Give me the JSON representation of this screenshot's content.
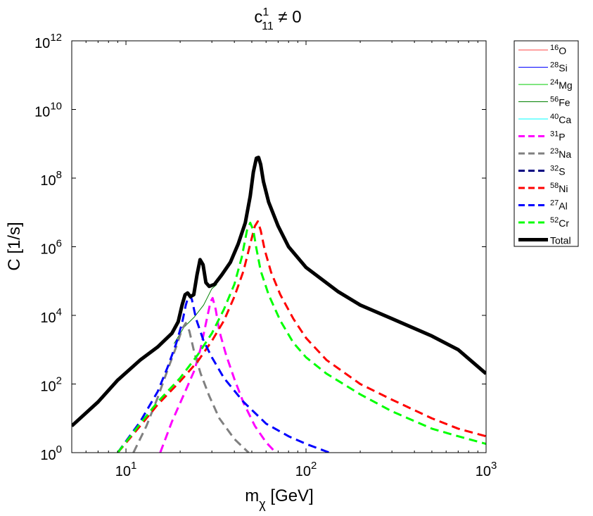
{
  "chart_data": {
    "type": "line",
    "title": {
      "base": "c",
      "sup": "1",
      "sub": "11",
      "rest": " ≠ 0"
    },
    "xlabel": {
      "base": "m",
      "sub": "χ",
      "rest": " [GeV]"
    },
    "ylabel": "C [1/s]",
    "xscale": "log",
    "yscale": "log",
    "xlim": [
      5,
      1000
    ],
    "ylim": [
      1,
      1000000000000
    ],
    "x_ticks": [
      {
        "value": 10,
        "base": "10",
        "exp": "1"
      },
      {
        "value": 100,
        "base": "10",
        "exp": "2"
      },
      {
        "value": 1000,
        "base": "10",
        "exp": "3"
      }
    ],
    "y_ticks": [
      {
        "value": 1,
        "base": "10",
        "exp": "0"
      },
      {
        "value": 100,
        "base": "10",
        "exp": "2"
      },
      {
        "value": 10000,
        "base": "10",
        "exp": "4"
      },
      {
        "value": 1000000,
        "base": "10",
        "exp": "6"
      },
      {
        "value": 100000000,
        "base": "10",
        "exp": "8"
      },
      {
        "value": 10000000000,
        "base": "10",
        "exp": "10"
      },
      {
        "value": 1000000000000,
        "base": "10",
        "exp": "12"
      }
    ],
    "legend_position": "outside-top-right",
    "series": [
      {
        "name": "16O",
        "label_sup": "16",
        "label_base": "O",
        "color": "#ff4444",
        "style": "solid",
        "width": 1,
        "points": []
      },
      {
        "name": "28Si",
        "label_sup": "28",
        "label_base": "Si",
        "color": "#0000ff",
        "style": "solid",
        "width": 1,
        "points": []
      },
      {
        "name": "24Mg",
        "label_sup": "24",
        "label_base": "Mg",
        "color": "#00cc00",
        "style": "solid",
        "width": 1,
        "points": []
      },
      {
        "name": "56Fe",
        "label_sup": "56",
        "label_base": "Fe",
        "color": "#008000",
        "style": "solid",
        "width": 1,
        "points": [
          [
            18.5,
            1500
          ],
          [
            21,
            4500
          ],
          [
            24,
            9000
          ],
          [
            27,
            20000
          ],
          [
            30,
            60000
          ],
          [
            32,
            80000
          ]
        ]
      },
      {
        "name": "40Ca",
        "label_sup": "40",
        "label_base": "Ca",
        "color": "#00ffff",
        "style": "solid",
        "width": 1,
        "points": []
      },
      {
        "name": "31P",
        "label_sup": "31",
        "label_base": "P",
        "color": "#ff00ff",
        "style": "dashed",
        "width": 3,
        "points": [
          [
            15.5,
            1
          ],
          [
            18,
            8
          ],
          [
            21,
            50
          ],
          [
            24,
            250
          ],
          [
            26,
            1100
          ],
          [
            28,
            7000
          ],
          [
            29.5,
            25000
          ],
          [
            30.3,
            32000
          ],
          [
            31.5,
            15000
          ],
          [
            33,
            3500
          ],
          [
            36,
            700
          ],
          [
            40,
            140
          ],
          [
            45,
            28
          ],
          [
            52,
            6
          ],
          [
            60,
            2
          ],
          [
            68,
            1
          ]
        ]
      },
      {
        "name": "23Na",
        "label_sup": "23",
        "label_base": "Na",
        "color": "#808080",
        "style": "dashed",
        "width": 3,
        "points": [
          [
            11,
            1
          ],
          [
            13,
            6
          ],
          [
            15,
            40
          ],
          [
            17,
            250
          ],
          [
            19,
            1200
          ],
          [
            20.5,
            4000
          ],
          [
            21.5,
            6000
          ],
          [
            22.5,
            3500
          ],
          [
            24,
            800
          ],
          [
            26,
            200
          ],
          [
            29,
            45
          ],
          [
            33,
            10
          ],
          [
            40,
            2.5
          ],
          [
            48,
            1
          ]
        ]
      },
      {
        "name": "32S",
        "label_sup": "32",
        "label_base": "S",
        "color": "#000080",
        "style": "dashed",
        "width": 3,
        "points": []
      },
      {
        "name": "58Ni",
        "label_sup": "58",
        "label_base": "Ni",
        "color": "#ff0000",
        "style": "dashed",
        "width": 3,
        "points": [
          [
            9,
            1
          ],
          [
            12,
            6
          ],
          [
            15,
            25
          ],
          [
            20,
            120
          ],
          [
            25,
            450
          ],
          [
            30,
            1800
          ],
          [
            35,
            7000
          ],
          [
            40,
            35000
          ],
          [
            45,
            200000
          ],
          [
            49,
            1200000
          ],
          [
            52,
            4000000
          ],
          [
            54,
            5500000
          ],
          [
            56,
            3000000
          ],
          [
            59,
            800000
          ],
          [
            64,
            180000
          ],
          [
            72,
            40000
          ],
          [
            85,
            8000
          ],
          [
            100,
            2200
          ],
          [
            130,
            500
          ],
          [
            200,
            100
          ],
          [
            300,
            35
          ],
          [
            500,
            10
          ],
          [
            700,
            5
          ],
          [
            1000,
            3
          ]
        ]
      },
      {
        "name": "27Al",
        "label_sup": "27",
        "label_base": "Al",
        "color": "#0000ff",
        "style": "dashed",
        "width": 3,
        "points": [
          [
            9,
            1
          ],
          [
            12,
            8
          ],
          [
            15,
            60
          ],
          [
            17,
            300
          ],
          [
            19,
            1500
          ],
          [
            20.5,
            6000
          ],
          [
            21.5,
            20000
          ],
          [
            22.3,
            38000
          ],
          [
            23.2,
            30000
          ],
          [
            24.5,
            8000
          ],
          [
            27,
            1800
          ],
          [
            30,
            600
          ],
          [
            35,
            150
          ],
          [
            45,
            30
          ],
          [
            60,
            7
          ],
          [
            80,
            3
          ],
          [
            100,
            1.8
          ],
          [
            135,
            1
          ]
        ]
      },
      {
        "name": "52Cr",
        "label_sup": "52",
        "label_base": "Cr",
        "color": "#00ff00",
        "style": "dashed",
        "width": 3,
        "points": [
          [
            9,
            1
          ],
          [
            12,
            7
          ],
          [
            15,
            30
          ],
          [
            20,
            150
          ],
          [
            25,
            700
          ],
          [
            30,
            3000
          ],
          [
            35,
            15000
          ],
          [
            40,
            80000
          ],
          [
            44,
            500000
          ],
          [
            47,
            3000000
          ],
          [
            49,
            5000000
          ],
          [
            51,
            3000000
          ],
          [
            53,
            900000
          ],
          [
            56,
            200000
          ],
          [
            62,
            40000
          ],
          [
            72,
            7000
          ],
          [
            85,
            1600
          ],
          [
            100,
            600
          ],
          [
            130,
            200
          ],
          [
            200,
            50
          ],
          [
            300,
            16
          ],
          [
            500,
            5
          ],
          [
            700,
            3
          ],
          [
            1000,
            1.8
          ]
        ]
      },
      {
        "name": "Total",
        "label_sup": "",
        "label_base": "Total",
        "color": "#000000",
        "style": "solid",
        "width": 5,
        "points": [
          [
            5,
            6
          ],
          [
            7,
            30
          ],
          [
            9,
            130
          ],
          [
            12,
            500
          ],
          [
            15,
            1200
          ],
          [
            18,
            3000
          ],
          [
            19.5,
            6500
          ],
          [
            20.5,
            20000
          ],
          [
            21.3,
            40000
          ],
          [
            22,
            45000
          ],
          [
            22.8,
            35000
          ],
          [
            23.8,
            40000
          ],
          [
            24.8,
            150000
          ],
          [
            25.8,
            420000
          ],
          [
            26.8,
            300000
          ],
          [
            27.8,
            90000
          ],
          [
            29,
            70000
          ],
          [
            31,
            80000
          ],
          [
            34,
            150000
          ],
          [
            38,
            350000
          ],
          [
            42,
            1200000
          ],
          [
            46,
            5000000
          ],
          [
            49,
            30000000
          ],
          [
            51,
            150000000
          ],
          [
            53,
            380000000
          ],
          [
            54.5,
            400000000
          ],
          [
            56,
            250000000
          ],
          [
            58,
            80000000
          ],
          [
            62,
            20000000
          ],
          [
            70,
            4000000
          ],
          [
            80,
            1000000
          ],
          [
            100,
            250000
          ],
          [
            150,
            50000
          ],
          [
            200,
            20000
          ],
          [
            300,
            8000
          ],
          [
            500,
            2500
          ],
          [
            700,
            1000
          ],
          [
            1000,
            200
          ]
        ]
      }
    ]
  }
}
